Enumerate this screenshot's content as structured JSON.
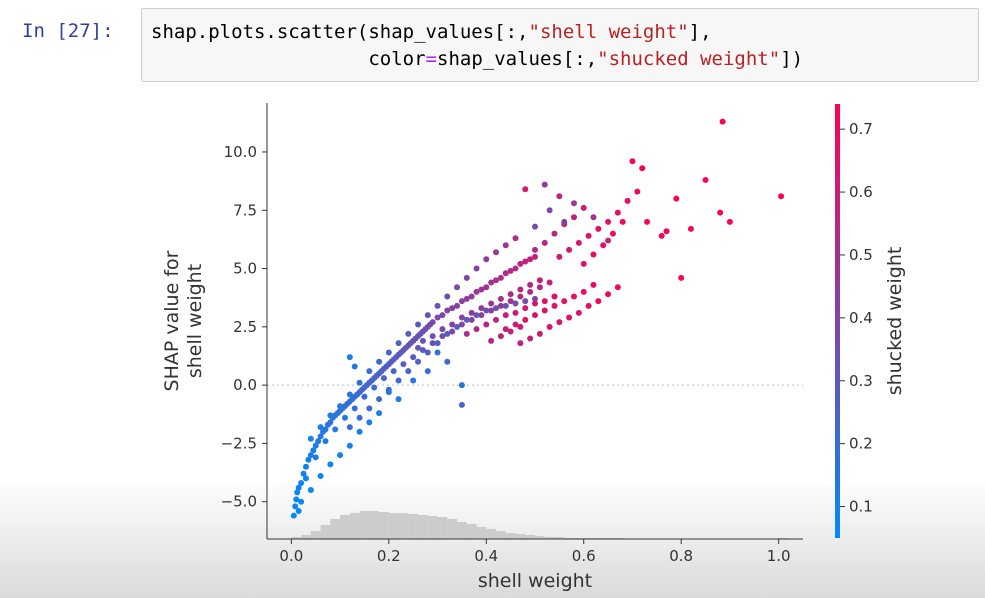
{
  "notebook": {
    "prompt": "In [27]:",
    "code": {
      "line1_pre": "shap.plots.scatter(shap_values[:,",
      "line1_str": "\"shell weight\"",
      "line1_post": "],",
      "line2_indent": "                   ",
      "line2_pre": "color",
      "line2_op": "=",
      "line2_mid": "shap_values[:,",
      "line2_str": "\"shucked weight\"",
      "line2_post": "])"
    }
  },
  "chart_data": {
    "type": "scatter",
    "xlabel": "shell weight",
    "ylabel_line1": "SHAP value for",
    "ylabel_line2": "shell weight",
    "colorbar_label": "shucked weight",
    "xlim": [
      -0.05,
      1.05
    ],
    "ylim": [
      -6.6,
      12.1
    ],
    "x_ticks": [
      0.0,
      0.2,
      0.4,
      0.6,
      0.8,
      1.0
    ],
    "x_tick_labels": [
      "0.0",
      "0.2",
      "0.4",
      "0.6",
      "0.8",
      "1.0"
    ],
    "y_ticks": [
      -5.0,
      -2.5,
      0.0,
      2.5,
      5.0,
      7.5,
      10.0
    ],
    "y_tick_labels": [
      "−5.0",
      "−2.5",
      "0.0",
      "2.5",
      "5.0",
      "7.5",
      "10.0"
    ],
    "colorbar_range": [
      0.05,
      0.74
    ],
    "colorbar_ticks": [
      0.1,
      0.2,
      0.3,
      0.4,
      0.5,
      0.6,
      0.7
    ],
    "colorbar_tick_labels": [
      "0.1",
      "0.2",
      "0.3",
      "0.4",
      "0.5",
      "0.6",
      "0.7"
    ],
    "colormap": [
      "#008bfb",
      "#ff0052"
    ],
    "zero_line": true,
    "histogram": {
      "bin_width": 0.02,
      "heights": [
        2,
        4,
        8,
        14,
        20,
        24,
        26,
        28,
        28,
        27,
        26,
        26,
        25,
        24,
        23,
        22,
        20,
        17,
        15,
        12,
        10,
        8,
        6,
        5,
        4,
        3,
        2,
        2,
        1,
        1,
        1,
        1,
        1,
        1,
        0,
        0,
        0,
        0,
        0,
        0,
        0,
        0,
        0,
        0,
        0,
        0,
        0,
        0,
        0,
        0,
        1
      ],
      "color": "#cccccc"
    },
    "points": [
      [
        0.005,
        -5.6,
        0.06
      ],
      [
        0.008,
        -5.2,
        0.07
      ],
      [
        0.01,
        -4.9,
        0.07
      ],
      [
        0.012,
        -4.6,
        0.08
      ],
      [
        0.015,
        -4.4,
        0.08
      ],
      [
        0.02,
        -4.2,
        0.09
      ],
      [
        0.025,
        -3.8,
        0.1
      ],
      [
        0.03,
        -3.5,
        0.1
      ],
      [
        0.035,
        -3.2,
        0.11
      ],
      [
        0.04,
        -3.0,
        0.12
      ],
      [
        0.045,
        -2.8,
        0.12
      ],
      [
        0.05,
        -2.6,
        0.13
      ],
      [
        0.055,
        -2.4,
        0.13
      ],
      [
        0.06,
        -2.2,
        0.14
      ],
      [
        0.065,
        -2.0,
        0.14
      ],
      [
        0.07,
        -1.9,
        0.15
      ],
      [
        0.075,
        -1.7,
        0.15
      ],
      [
        0.08,
        -1.6,
        0.16
      ],
      [
        0.085,
        -1.4,
        0.16
      ],
      [
        0.09,
        -1.3,
        0.17
      ],
      [
        0.095,
        -1.2,
        0.17
      ],
      [
        0.1,
        -1.1,
        0.18
      ],
      [
        0.105,
        -1.0,
        0.18
      ],
      [
        0.11,
        -0.9,
        0.19
      ],
      [
        0.115,
        -0.8,
        0.19
      ],
      [
        0.12,
        -0.7,
        0.2
      ],
      [
        0.125,
        -0.6,
        0.2
      ],
      [
        0.13,
        -0.5,
        0.21
      ],
      [
        0.135,
        -0.4,
        0.21
      ],
      [
        0.14,
        -0.3,
        0.22
      ],
      [
        0.145,
        -0.2,
        0.22
      ],
      [
        0.15,
        -0.1,
        0.23
      ],
      [
        0.155,
        0.0,
        0.23
      ],
      [
        0.16,
        0.1,
        0.24
      ],
      [
        0.165,
        0.2,
        0.24
      ],
      [
        0.17,
        0.3,
        0.25
      ],
      [
        0.175,
        0.4,
        0.25
      ],
      [
        0.18,
        0.5,
        0.26
      ],
      [
        0.185,
        0.6,
        0.26
      ],
      [
        0.19,
        0.7,
        0.27
      ],
      [
        0.195,
        0.8,
        0.27
      ],
      [
        0.2,
        0.9,
        0.28
      ],
      [
        0.205,
        1.0,
        0.28
      ],
      [
        0.21,
        1.1,
        0.29
      ],
      [
        0.215,
        1.2,
        0.29
      ],
      [
        0.22,
        1.3,
        0.3
      ],
      [
        0.225,
        1.4,
        0.3
      ],
      [
        0.23,
        1.5,
        0.31
      ],
      [
        0.235,
        1.6,
        0.31
      ],
      [
        0.24,
        1.7,
        0.32
      ],
      [
        0.245,
        1.8,
        0.32
      ],
      [
        0.25,
        1.9,
        0.33
      ],
      [
        0.255,
        2.0,
        0.33
      ],
      [
        0.26,
        2.1,
        0.34
      ],
      [
        0.265,
        2.2,
        0.34
      ],
      [
        0.27,
        2.3,
        0.35
      ],
      [
        0.275,
        2.4,
        0.35
      ],
      [
        0.28,
        2.5,
        0.36
      ],
      [
        0.285,
        2.6,
        0.36
      ],
      [
        0.29,
        2.7,
        0.37
      ],
      [
        0.3,
        2.9,
        0.38
      ],
      [
        0.31,
        3.0,
        0.39
      ],
      [
        0.32,
        3.2,
        0.4
      ],
      [
        0.33,
        3.3,
        0.41
      ],
      [
        0.34,
        3.4,
        0.42
      ],
      [
        0.35,
        3.6,
        0.43
      ],
      [
        0.36,
        3.7,
        0.44
      ],
      [
        0.37,
        3.8,
        0.45
      ],
      [
        0.38,
        4.0,
        0.46
      ],
      [
        0.39,
        4.1,
        0.47
      ],
      [
        0.4,
        4.2,
        0.48
      ],
      [
        0.41,
        4.4,
        0.49
      ],
      [
        0.42,
        4.5,
        0.5
      ],
      [
        0.43,
        4.6,
        0.51
      ],
      [
        0.44,
        4.8,
        0.52
      ],
      [
        0.45,
        4.9,
        0.53
      ],
      [
        0.46,
        5.0,
        0.54
      ],
      [
        0.47,
        5.2,
        0.55
      ],
      [
        0.48,
        5.3,
        0.56
      ],
      [
        0.49,
        5.4,
        0.57
      ],
      [
        0.5,
        5.5,
        0.58
      ],
      [
        0.03,
        -4.0,
        0.09
      ],
      [
        0.05,
        -3.1,
        0.11
      ],
      [
        0.07,
        -2.4,
        0.12
      ],
      [
        0.09,
        -1.9,
        0.14
      ],
      [
        0.11,
        -1.4,
        0.15
      ],
      [
        0.13,
        -1.0,
        0.17
      ],
      [
        0.15,
        -0.5,
        0.19
      ],
      [
        0.17,
        -0.1,
        0.21
      ],
      [
        0.19,
        0.3,
        0.23
      ],
      [
        0.21,
        0.6,
        0.25
      ],
      [
        0.23,
        0.9,
        0.27
      ],
      [
        0.25,
        1.2,
        0.29
      ],
      [
        0.27,
        1.5,
        0.31
      ],
      [
        0.29,
        1.8,
        0.33
      ],
      [
        0.31,
        2.1,
        0.35
      ],
      [
        0.33,
        2.3,
        0.37
      ],
      [
        0.35,
        2.6,
        0.39
      ],
      [
        0.37,
        2.8,
        0.41
      ],
      [
        0.39,
        3.0,
        0.43
      ],
      [
        0.41,
        3.2,
        0.45
      ],
      [
        0.43,
        3.4,
        0.47
      ],
      [
        0.45,
        3.6,
        0.49
      ],
      [
        0.47,
        3.8,
        0.51
      ],
      [
        0.49,
        4.0,
        0.53
      ],
      [
        0.51,
        4.2,
        0.55
      ],
      [
        0.53,
        4.4,
        0.57
      ],
      [
        0.04,
        -2.3,
        0.11
      ],
      [
        0.06,
        -1.8,
        0.12
      ],
      [
        0.08,
        -1.3,
        0.13
      ],
      [
        0.1,
        -0.9,
        0.14
      ],
      [
        0.12,
        -0.4,
        0.16
      ],
      [
        0.14,
        0.1,
        0.18
      ],
      [
        0.16,
        0.6,
        0.2
      ],
      [
        0.18,
        1.0,
        0.22
      ],
      [
        0.2,
        1.4,
        0.24
      ],
      [
        0.22,
        1.8,
        0.26
      ],
      [
        0.24,
        2.2,
        0.28
      ],
      [
        0.26,
        2.6,
        0.3
      ],
      [
        0.28,
        3.0,
        0.32
      ],
      [
        0.3,
        3.4,
        0.34
      ],
      [
        0.32,
        3.8,
        0.36
      ],
      [
        0.34,
        4.2,
        0.38
      ],
      [
        0.36,
        4.6,
        0.4
      ],
      [
        0.38,
        5.0,
        0.42
      ],
      [
        0.4,
        5.4,
        0.44
      ],
      [
        0.42,
        5.7,
        0.46
      ],
      [
        0.44,
        6.0,
        0.48
      ],
      [
        0.46,
        6.3,
        0.5
      ],
      [
        0.12,
        -1.8,
        0.19
      ],
      [
        0.14,
        -1.4,
        0.2
      ],
      [
        0.16,
        -1.0,
        0.21
      ],
      [
        0.18,
        -0.6,
        0.22
      ],
      [
        0.2,
        -0.2,
        0.23
      ],
      [
        0.22,
        0.2,
        0.24
      ],
      [
        0.24,
        0.6,
        0.25
      ],
      [
        0.26,
        1.0,
        0.26
      ],
      [
        0.28,
        1.4,
        0.27
      ],
      [
        0.3,
        1.8,
        0.28
      ],
      [
        0.32,
        2.2,
        0.29
      ],
      [
        0.34,
        2.5,
        0.3
      ],
      [
        0.36,
        2.8,
        0.31
      ],
      [
        0.38,
        3.0,
        0.32
      ],
      [
        0.4,
        3.2,
        0.33
      ],
      [
        0.42,
        3.3,
        0.34
      ],
      [
        0.44,
        3.4,
        0.35
      ],
      [
        0.46,
        3.5,
        0.36
      ],
      [
        0.48,
        3.6,
        0.37
      ],
      [
        0.5,
        3.7,
        0.38
      ],
      [
        0.44,
        2.4,
        0.58
      ],
      [
        0.46,
        2.6,
        0.6
      ],
      [
        0.48,
        2.8,
        0.62
      ],
      [
        0.5,
        3.0,
        0.63
      ],
      [
        0.52,
        3.2,
        0.64
      ],
      [
        0.54,
        3.4,
        0.65
      ],
      [
        0.56,
        3.6,
        0.66
      ],
      [
        0.58,
        3.8,
        0.67
      ],
      [
        0.6,
        4.0,
        0.68
      ],
      [
        0.62,
        4.3,
        0.69
      ],
      [
        0.47,
        1.8,
        0.56
      ],
      [
        0.49,
        2.0,
        0.58
      ],
      [
        0.51,
        2.2,
        0.6
      ],
      [
        0.53,
        2.5,
        0.62
      ],
      [
        0.55,
        2.7,
        0.63
      ],
      [
        0.57,
        2.9,
        0.64
      ],
      [
        0.59,
        3.1,
        0.65
      ],
      [
        0.61,
        3.4,
        0.67
      ],
      [
        0.63,
        3.6,
        0.68
      ],
      [
        0.65,
        3.9,
        0.69
      ],
      [
        0.67,
        4.2,
        0.7
      ],
      [
        0.5,
        5.8,
        0.52
      ],
      [
        0.52,
        6.1,
        0.54
      ],
      [
        0.54,
        6.5,
        0.56
      ],
      [
        0.56,
        6.9,
        0.58
      ],
      [
        0.58,
        7.2,
        0.6
      ],
      [
        0.6,
        7.6,
        0.62
      ],
      [
        0.55,
        5.5,
        0.6
      ],
      [
        0.57,
        5.8,
        0.62
      ],
      [
        0.59,
        6.1,
        0.63
      ],
      [
        0.61,
        6.4,
        0.64
      ],
      [
        0.63,
        6.7,
        0.65
      ],
      [
        0.65,
        7.0,
        0.66
      ],
      [
        0.67,
        7.4,
        0.67
      ],
      [
        0.69,
        7.9,
        0.68
      ],
      [
        0.71,
        8.3,
        0.69
      ],
      [
        0.6,
        5.2,
        0.66
      ],
      [
        0.62,
        5.6,
        0.67
      ],
      [
        0.64,
        6.0,
        0.68
      ],
      [
        0.66,
        6.5,
        0.69
      ],
      [
        0.68,
        7.0,
        0.7
      ],
      [
        0.7,
        9.6,
        0.72
      ],
      [
        0.72,
        9.3,
        0.72
      ],
      [
        0.73,
        7.0,
        0.71
      ],
      [
        0.76,
        6.4,
        0.7
      ],
      [
        0.77,
        6.6,
        0.7
      ],
      [
        0.79,
        8.0,
        0.72
      ],
      [
        0.8,
        4.6,
        0.71
      ],
      [
        0.82,
        6.7,
        0.71
      ],
      [
        0.85,
        8.8,
        0.73
      ],
      [
        0.88,
        7.4,
        0.72
      ],
      [
        0.885,
        11.3,
        0.74
      ],
      [
        0.9,
        7.0,
        0.72
      ],
      [
        1.005,
        8.1,
        0.73
      ],
      [
        0.48,
        8.4,
        0.6
      ],
      [
        0.52,
        8.6,
        0.45
      ],
      [
        0.55,
        8.1,
        0.52
      ],
      [
        0.58,
        7.8,
        0.46
      ],
      [
        0.53,
        7.5,
        0.38
      ],
      [
        0.56,
        7.0,
        0.4
      ],
      [
        0.5,
        6.8,
        0.36
      ],
      [
        0.62,
        7.2,
        0.48
      ],
      [
        0.65,
        6.2,
        0.55
      ],
      [
        0.12,
        1.2,
        0.13
      ],
      [
        0.13,
        0.8,
        0.14
      ],
      [
        0.2,
        -0.3,
        0.15
      ],
      [
        0.25,
        0.2,
        0.17
      ],
      [
        0.3,
        1.4,
        0.19
      ],
      [
        0.35,
        0.0,
        0.16
      ],
      [
        0.35,
        -0.85,
        0.25
      ],
      [
        0.28,
        0.6,
        0.2
      ],
      [
        0.32,
        1.0,
        0.22
      ],
      [
        0.22,
        -0.6,
        0.13
      ],
      [
        0.18,
        -1.2,
        0.12
      ],
      [
        0.16,
        -1.6,
        0.11
      ],
      [
        0.14,
        -2.0,
        0.1
      ],
      [
        0.12,
        -2.6,
        0.1
      ],
      [
        0.1,
        -3.0,
        0.09
      ],
      [
        0.08,
        -3.4,
        0.08
      ],
      [
        0.06,
        -3.9,
        0.08
      ],
      [
        0.04,
        -4.5,
        0.07
      ],
      [
        0.02,
        -5.0,
        0.06
      ],
      [
        0.015,
        -5.4,
        0.06
      ],
      [
        0.26,
        1.6,
        0.3
      ],
      [
        0.27,
        1.9,
        0.33
      ],
      [
        0.29,
        2.1,
        0.36
      ],
      [
        0.31,
        2.4,
        0.38
      ],
      [
        0.33,
        2.6,
        0.4
      ],
      [
        0.35,
        2.9,
        0.42
      ],
      [
        0.37,
        3.1,
        0.44
      ],
      [
        0.39,
        3.3,
        0.46
      ],
      [
        0.41,
        3.5,
        0.48
      ],
      [
        0.43,
        3.7,
        0.5
      ],
      [
        0.45,
        3.9,
        0.52
      ],
      [
        0.47,
        4.1,
        0.54
      ],
      [
        0.49,
        4.3,
        0.56
      ],
      [
        0.51,
        4.5,
        0.58
      ],
      [
        0.36,
        2.2,
        0.5
      ],
      [
        0.38,
        2.4,
        0.52
      ],
      [
        0.4,
        2.6,
        0.54
      ],
      [
        0.42,
        2.8,
        0.56
      ],
      [
        0.44,
        3.0,
        0.58
      ],
      [
        0.46,
        3.1,
        0.6
      ],
      [
        0.48,
        3.3,
        0.62
      ],
      [
        0.5,
        3.5,
        0.64
      ],
      [
        0.52,
        3.6,
        0.65
      ],
      [
        0.54,
        3.8,
        0.66
      ],
      [
        0.41,
        1.9,
        0.53
      ],
      [
        0.43,
        2.1,
        0.55
      ],
      [
        0.45,
        2.3,
        0.57
      ],
      [
        0.47,
        2.5,
        0.59
      ]
    ]
  }
}
